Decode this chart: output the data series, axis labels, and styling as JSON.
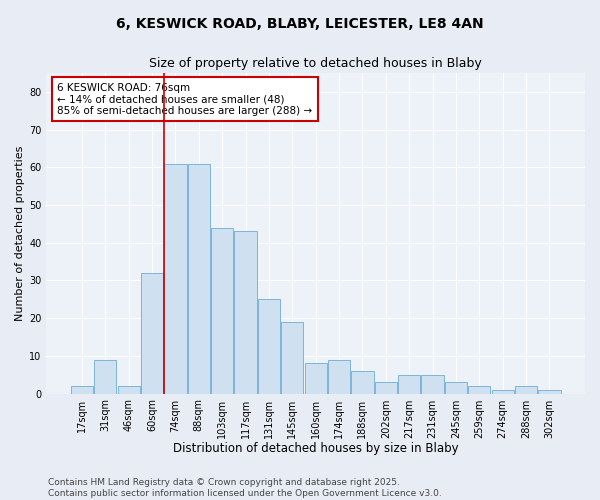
{
  "title_line1": "6, KESWICK ROAD, BLABY, LEICESTER, LE8 4AN",
  "title_line2": "Size of property relative to detached houses in Blaby",
  "xlabel": "Distribution of detached houses by size in Blaby",
  "ylabel": "Number of detached properties",
  "categories": [
    "17sqm",
    "31sqm",
    "46sqm",
    "60sqm",
    "74sqm",
    "88sqm",
    "103sqm",
    "117sqm",
    "131sqm",
    "145sqm",
    "160sqm",
    "174sqm",
    "188sqm",
    "202sqm",
    "217sqm",
    "231sqm",
    "245sqm",
    "259sqm",
    "274sqm",
    "288sqm",
    "302sqm"
  ],
  "values": [
    2,
    9,
    2,
    32,
    61,
    61,
    44,
    43,
    25,
    19,
    8,
    9,
    6,
    3,
    5,
    5,
    3,
    2,
    1,
    2,
    1
  ],
  "bar_color": "#cfe0f0",
  "bar_edge_color": "#7ab5d8",
  "highlight_bar_index": 4,
  "highlight_line_color": "#cc0000",
  "annotation_line1": "6 KESWICK ROAD: 76sqm",
  "annotation_line2": "← 14% of detached houses are smaller (48)",
  "annotation_line3": "85% of semi-detached houses are larger (288) →",
  "annotation_box_color": "#ffffff",
  "annotation_box_edge_color": "#cc0000",
  "ylim": [
    0,
    85
  ],
  "yticks": [
    0,
    10,
    20,
    30,
    40,
    50,
    60,
    70,
    80
  ],
  "background_color": "#e8edf5",
  "plot_bg_color": "#edf1f8",
  "grid_color": "#ffffff",
  "footer_text": "Contains HM Land Registry data © Crown copyright and database right 2025.\nContains public sector information licensed under the Open Government Licence v3.0.",
  "title_fontsize": 10,
  "subtitle_fontsize": 9,
  "xlabel_fontsize": 8.5,
  "ylabel_fontsize": 8,
  "tick_fontsize": 7,
  "annotation_fontsize": 7.5,
  "footer_fontsize": 6.5
}
